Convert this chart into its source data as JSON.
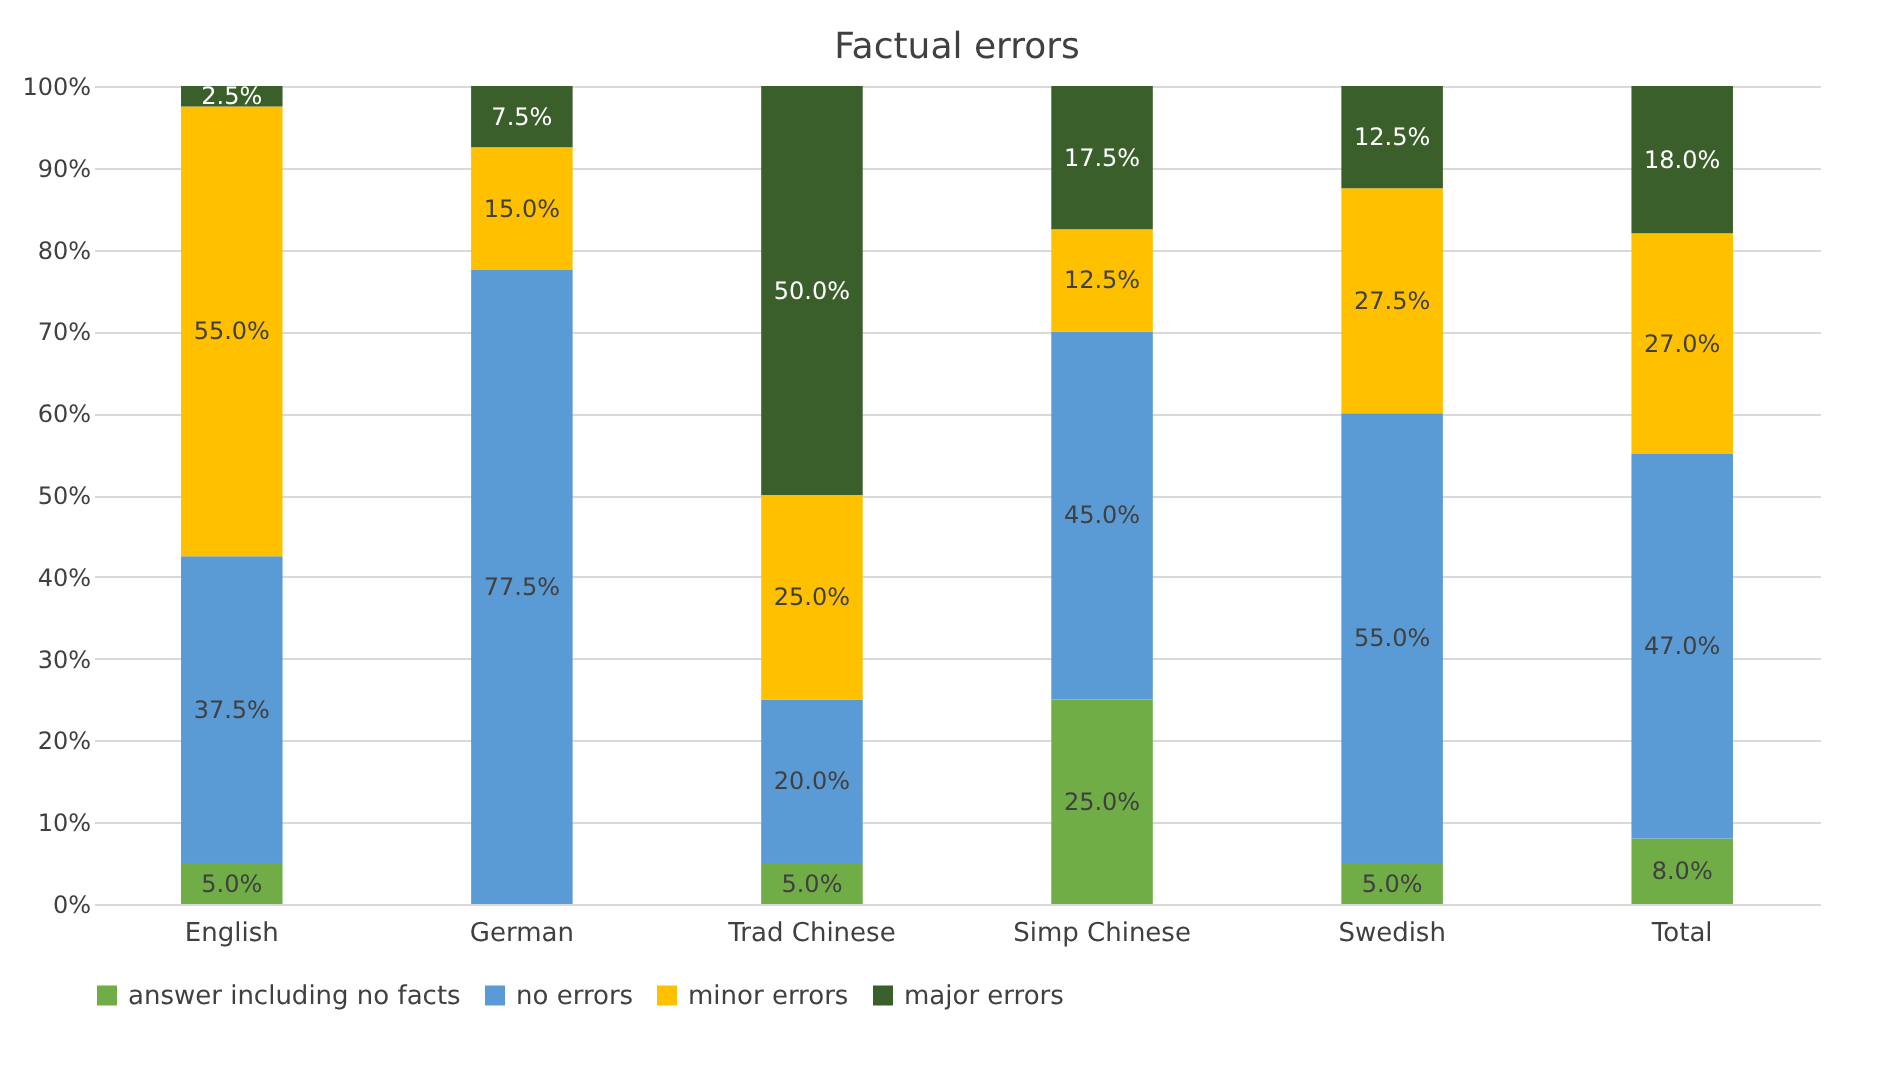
{
  "chart_data": {
    "type": "bar",
    "stacked": true,
    "title": "Factual errors",
    "categories": [
      "English",
      "German",
      "Trad Chinese",
      "Simp Chinese",
      "Swedish",
      "Total"
    ],
    "series": [
      {
        "name": "answer including no facts",
        "color": "#70ad47",
        "values": [
          5,
          0,
          5,
          25,
          5,
          8
        ],
        "value_labels": [
          "5.0%",
          null,
          "5.0%",
          "25.0%",
          "5.0%",
          "8.0%"
        ]
      },
      {
        "name": "no errors",
        "color": "#5b9bd5",
        "values": [
          37.5,
          77.5,
          20,
          45,
          55,
          47
        ],
        "value_labels": [
          "37.5%",
          "77.5%",
          "20.0%",
          "45.0%",
          "55.0%",
          "47.0%"
        ]
      },
      {
        "name": "minor errors",
        "color": "#ffc000",
        "values": [
          55,
          15,
          25,
          12.5,
          27.5,
          27
        ],
        "value_labels": [
          "55.0%",
          "15.0%",
          "25.0%",
          "12.5%",
          "27.5%",
          "27.0%"
        ]
      },
      {
        "name": "major errors",
        "color": "#3b5f2b",
        "values": [
          2.5,
          7.5,
          50,
          17.5,
          12.5,
          18
        ],
        "value_labels": [
          "2.5%",
          "7.5%",
          "50.0%",
          "17.5%",
          "12.5%",
          "18.0%"
        ]
      }
    ],
    "ylim": [
      0,
      100
    ],
    "yticks": [
      {
        "value": 0,
        "label": "0%"
      },
      {
        "value": 10,
        "label": "10%"
      },
      {
        "value": 20,
        "label": "20%"
      },
      {
        "value": 30,
        "label": "30%"
      },
      {
        "value": 40,
        "label": "40%"
      },
      {
        "value": 50,
        "label": "50%"
      },
      {
        "value": 60,
        "label": "60%"
      },
      {
        "value": 70,
        "label": "70%"
      },
      {
        "value": 80,
        "label": "80%"
      },
      {
        "value": 90,
        "label": "90%"
      },
      {
        "value": 100,
        "label": "100%"
      }
    ],
    "grid": "y",
    "legend": "bottom"
  }
}
